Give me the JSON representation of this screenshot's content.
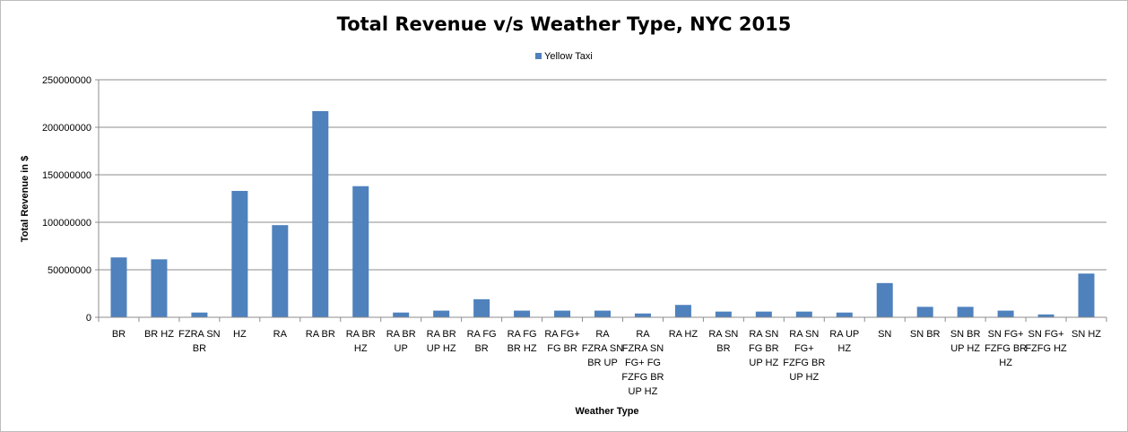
{
  "chart_data": {
    "type": "bar",
    "title": "Total Revenue v/s Weather Type, NYC 2015",
    "xlabel": "Weather Type",
    "ylabel": "Total Revenue in $",
    "ylim": [
      0,
      250000000
    ],
    "yticks": [
      0,
      50000000,
      100000000,
      150000000,
      200000000,
      250000000
    ],
    "ytick_labels": [
      "0",
      "50000000",
      "100000000",
      "150000000",
      "200000000",
      "250000000"
    ],
    "grid": true,
    "legend_position": "top-center",
    "colors": {
      "series": "#4F81BD",
      "grid": "#8c8c8c",
      "axis": "#8c8c8c"
    },
    "categories": [
      [
        "BR"
      ],
      [
        "BR HZ"
      ],
      [
        "FZRA SN",
        "BR"
      ],
      [
        "HZ"
      ],
      [
        "RA"
      ],
      [
        "RA BR"
      ],
      [
        "RA BR",
        "HZ"
      ],
      [
        "RA BR",
        "UP"
      ],
      [
        "RA BR",
        "UP HZ"
      ],
      [
        "RA FG",
        "BR"
      ],
      [
        "RA FG",
        "BR HZ"
      ],
      [
        "RA FG+",
        "FG BR"
      ],
      [
        "RA",
        "FZRA SN",
        "BR UP"
      ],
      [
        "RA",
        "FZRA SN",
        "FG+ FG",
        "FZFG BR",
        "UP HZ"
      ],
      [
        "RA HZ"
      ],
      [
        "RA SN",
        "BR"
      ],
      [
        "RA SN",
        "FG BR",
        "UP HZ"
      ],
      [
        "RA SN",
        "FG+",
        "FZFG BR",
        "UP HZ"
      ],
      [
        "RA UP",
        "HZ"
      ],
      [
        "SN"
      ],
      [
        "SN BR"
      ],
      [
        "SN BR",
        "UP HZ"
      ],
      [
        "SN FG+",
        "FZFG BR",
        "HZ"
      ],
      [
        "SN FG+",
        "FZFG HZ"
      ],
      [
        "SN HZ"
      ]
    ],
    "series": [
      {
        "name": "Yellow Taxi",
        "values": [
          63000000,
          61000000,
          5000000,
          133000000,
          97000000,
          217000000,
          138000000,
          5000000,
          7000000,
          19000000,
          7000000,
          7000000,
          7000000,
          4000000,
          13000000,
          6000000,
          6000000,
          6000000,
          5000000,
          36000000,
          11000000,
          11000000,
          7000000,
          3000000,
          46000000
        ]
      }
    ]
  }
}
